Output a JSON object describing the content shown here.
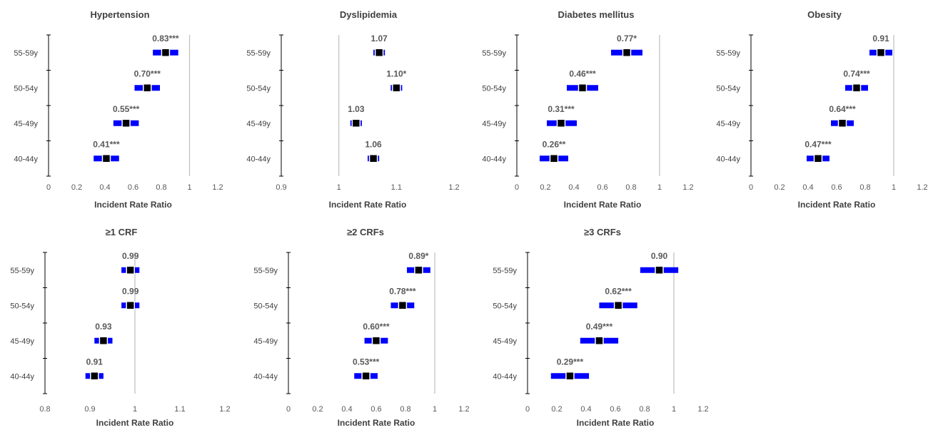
{
  "chart_data": [
    {
      "type": "scatter",
      "title": "Hypertension",
      "xlabel": "Incident Rate Ratio",
      "xlim": [
        0,
        1.2
      ],
      "xticks": [
        "0",
        "0.2",
        "0.4",
        "0.6",
        "0.8",
        "1",
        "1.2"
      ],
      "reference_line": 1,
      "categories": [
        "40-44y",
        "45-49y",
        "50-54y",
        "55-59y"
      ],
      "values": [
        0.41,
        0.55,
        0.7,
        0.83
      ],
      "ci_low": [
        0.32,
        0.46,
        0.61,
        0.74
      ],
      "ci_high": [
        0.5,
        0.64,
        0.79,
        0.92
      ],
      "labels": [
        "0.41***",
        "0.55***",
        "0.70***",
        "0.83***"
      ]
    },
    {
      "type": "scatter",
      "title": "Dyslipidemia",
      "xlabel": "Incident Rate Ratio",
      "xlim": [
        0.9,
        1.2
      ],
      "xticks": [
        "0.9",
        "1",
        "1.1",
        "1.2"
      ],
      "reference_line": 1,
      "categories": [
        "40-44y",
        "45-49y",
        "50-54y",
        "55-59y"
      ],
      "values": [
        1.06,
        1.03,
        1.1,
        1.07
      ],
      "ci_low": [
        1.05,
        1.02,
        1.09,
        1.06
      ],
      "ci_high": [
        1.07,
        1.04,
        1.11,
        1.08
      ],
      "labels": [
        "1.06",
        "1.03",
        "1.10*",
        "1.07"
      ]
    },
    {
      "type": "scatter",
      "title": "Diabetes mellitus",
      "xlabel": "Incident Rate Ratio",
      "xlim": [
        0,
        1.2
      ],
      "xticks": [
        "0",
        "0.2",
        "0.4",
        "0.6",
        "0.8",
        "1",
        "1.2"
      ],
      "reference_line": 1,
      "categories": [
        "40-44y",
        "45-49y",
        "50-54y",
        "55-59y"
      ],
      "values": [
        0.26,
        0.31,
        0.46,
        0.77
      ],
      "ci_low": [
        0.16,
        0.21,
        0.35,
        0.66
      ],
      "ci_high": [
        0.36,
        0.42,
        0.57,
        0.88
      ],
      "labels": [
        "0.26**",
        "0.31***",
        "0.46***",
        "0.77*"
      ]
    },
    {
      "type": "scatter",
      "title": "Obesity",
      "xlabel": "Incident Rate Ratio",
      "xlim": [
        0,
        1.2
      ],
      "xticks": [
        "0",
        "0.2",
        "0.4",
        "0.6",
        "0.8",
        "1",
        "1.2"
      ],
      "reference_line": 1,
      "categories": [
        "40-44y",
        "45-49y",
        "50-54y",
        "55-59y"
      ],
      "values": [
        0.47,
        0.64,
        0.74,
        0.91
      ],
      "ci_low": [
        0.39,
        0.56,
        0.66,
        0.83
      ],
      "ci_high": [
        0.55,
        0.72,
        0.82,
        0.99
      ],
      "labels": [
        "0.47***",
        "0.64***",
        "0.74***",
        "0.91"
      ]
    },
    {
      "type": "scatter",
      "title": "≥1 CRF",
      "xlabel": "Incident Rate Ratio",
      "xlim": [
        0.8,
        1.2
      ],
      "xticks": [
        "0.8",
        "0.9",
        "1",
        "1.1",
        "1.2"
      ],
      "reference_line": 1,
      "categories": [
        "40-44y",
        "45-49y",
        "50-54y",
        "55-59y"
      ],
      "values": [
        0.91,
        0.93,
        0.99,
        0.99
      ],
      "ci_low": [
        0.89,
        0.91,
        0.97,
        0.97
      ],
      "ci_high": [
        0.93,
        0.95,
        1.01,
        1.01
      ],
      "labels": [
        "0.91",
        "0.93",
        "0.99",
        "0.99"
      ]
    },
    {
      "type": "scatter",
      "title": "≥2 CRFs",
      "xlabel": "Incident Rate Ratio",
      "xlim": [
        0,
        1.2
      ],
      "xticks": [
        "0",
        "0.2",
        "0.4",
        "0.6",
        "0.8",
        "1",
        "1.2"
      ],
      "reference_line": 1,
      "categories": [
        "40-44y",
        "45-49y",
        "50-54y",
        "55-59y"
      ],
      "values": [
        0.53,
        0.6,
        0.78,
        0.89
      ],
      "ci_low": [
        0.45,
        0.52,
        0.7,
        0.81
      ],
      "ci_high": [
        0.61,
        0.68,
        0.86,
        0.97
      ],
      "labels": [
        "0.53***",
        "0.60***",
        "0.78***",
        "0.89*"
      ]
    },
    {
      "type": "scatter",
      "title": "≥3 CRFs",
      "xlabel": "Incident Rate Ratio",
      "xlim": [
        0,
        1.2
      ],
      "xticks": [
        "0",
        "0.2",
        "0.4",
        "0.6",
        "0.8",
        "1",
        "1.2"
      ],
      "reference_line": 1,
      "categories": [
        "40-44y",
        "45-49y",
        "50-54y",
        "55-59y"
      ],
      "values": [
        0.29,
        0.49,
        0.62,
        0.9
      ],
      "ci_low": [
        0.16,
        0.36,
        0.49,
        0.77
      ],
      "ci_high": [
        0.42,
        0.62,
        0.75,
        1.03
      ],
      "labels": [
        "0.29***",
        "0.49***",
        "0.62***",
        "0.90"
      ]
    }
  ],
  "colors": {
    "ci_bar": "#0000ff",
    "point": "#000000",
    "reference_line": "#bfbfbf",
    "axis": "#000000"
  }
}
